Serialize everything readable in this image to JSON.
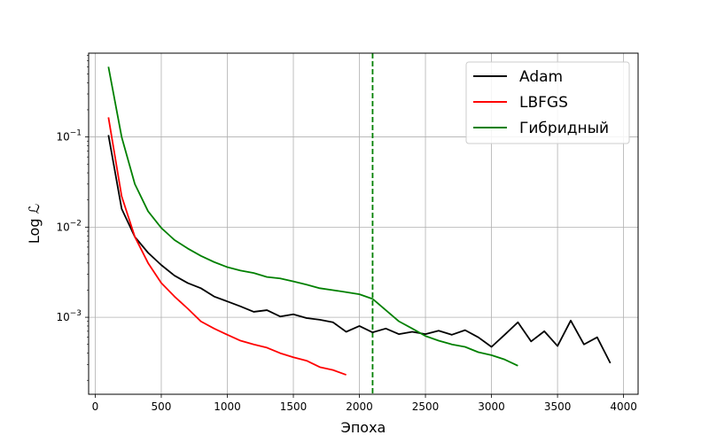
{
  "chart_data": {
    "type": "line",
    "title": "",
    "xlabel": "Эпоха",
    "ylabel": "Log ℒ",
    "xlim": [
      -50,
      4110
    ],
    "ylim": [
      0.00014,
      0.85
    ],
    "yscale": "log",
    "grid": true,
    "legend_position": "top-right",
    "x_ticks": [
      0,
      500,
      1000,
      1500,
      2000,
      2500,
      3000,
      3500,
      4000
    ],
    "y_ticks": [
      {
        "value": 0.001,
        "base": "10",
        "exp": "−3"
      },
      {
        "value": 0.01,
        "base": "10",
        "exp": "−2"
      },
      {
        "value": 0.1,
        "base": "10",
        "exp": "−1"
      }
    ],
    "vline": {
      "x": 2100,
      "color": "#008000",
      "style": "dashed"
    },
    "series": [
      {
        "name": "Adam",
        "color": "#000000",
        "x": [
          100,
          200,
          300,
          400,
          500,
          600,
          700,
          800,
          900,
          1000,
          1100,
          1200,
          1300,
          1400,
          1500,
          1600,
          1700,
          1800,
          1900,
          2000,
          2100,
          2200,
          2300,
          2400,
          2500,
          2600,
          2700,
          2800,
          2900,
          3000,
          3100,
          3200,
          3300,
          3400,
          3500,
          3600,
          3700,
          3800,
          3900
        ],
        "y": [
          0.105,
          0.016,
          0.0078,
          0.0052,
          0.0038,
          0.0029,
          0.0024,
          0.0021,
          0.0017,
          0.0015,
          0.00132,
          0.00115,
          0.0012,
          0.00102,
          0.00108,
          0.00098,
          0.00094,
          0.00088,
          0.00069,
          0.0008,
          0.00068,
          0.00075,
          0.00065,
          0.00069,
          0.00065,
          0.00071,
          0.00064,
          0.00072,
          0.0006,
          0.00047,
          0.00064,
          0.00088,
          0.00054,
          0.0007,
          0.00048,
          0.00092,
          0.0005,
          0.0006,
          0.00031
        ]
      },
      {
        "name": "LBFGS",
        "color": "#ff0000",
        "x": [
          100,
          200,
          300,
          400,
          500,
          600,
          700,
          800,
          900,
          1000,
          1100,
          1200,
          1300,
          1400,
          1500,
          1600,
          1700,
          1800,
          1900
        ],
        "y": [
          0.165,
          0.022,
          0.0078,
          0.004,
          0.0024,
          0.0017,
          0.00125,
          0.0009,
          0.00075,
          0.00064,
          0.00055,
          0.0005,
          0.00046,
          0.0004,
          0.00036,
          0.00033,
          0.00028,
          0.00026,
          0.00023
        ]
      },
      {
        "name": "Гибридный",
        "color": "#008000",
        "x": [
          100,
          200,
          300,
          400,
          500,
          600,
          700,
          800,
          900,
          1000,
          1100,
          1200,
          1300,
          1400,
          1500,
          1600,
          1700,
          1800,
          1900,
          2000,
          2100,
          2200,
          2300,
          2400,
          2500,
          2600,
          2700,
          2800,
          2900,
          3000,
          3100,
          3200
        ],
        "y": [
          0.6,
          0.1,
          0.03,
          0.015,
          0.0098,
          0.0072,
          0.0058,
          0.0048,
          0.0041,
          0.0036,
          0.0033,
          0.0031,
          0.0028,
          0.0027,
          0.0025,
          0.0023,
          0.0021,
          0.002,
          0.0019,
          0.0018,
          0.0016,
          0.0012,
          0.0009,
          0.00075,
          0.00062,
          0.00055,
          0.0005,
          0.00047,
          0.00041,
          0.00038,
          0.00034,
          0.00029
        ]
      }
    ]
  }
}
